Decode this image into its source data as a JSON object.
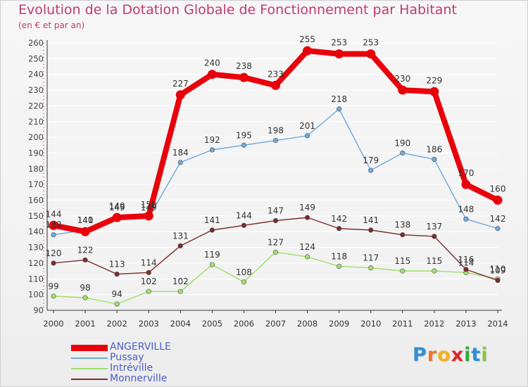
{
  "title": "Evolution de la Dotation Globale de Fonctionnement par Habitant",
  "subtitle": "(en € et par an)",
  "brand": {
    "letters": [
      "P",
      "r",
      "o",
      "x",
      "i",
      "t",
      "i"
    ],
    "colors": [
      "#2f8fd6",
      "#e8792b",
      "#f2b21d",
      "#d9272e",
      "#3aa640",
      "#2f8fd6",
      "#8dc63f"
    ]
  },
  "chart_data": {
    "type": "line",
    "title": "Evolution de la Dotation Globale de Fonctionnement par Habitant",
    "subtitle": "(en € et par an)",
    "xlabel": "",
    "ylabel": "",
    "categories": [
      "2000",
      "2001",
      "2002",
      "2003",
      "2004",
      "2005",
      "2006",
      "2007",
      "2008",
      "2009",
      "2010",
      "2011",
      "2012",
      "2013",
      "2014"
    ],
    "ylim": [
      90,
      260
    ],
    "yticks": [
      90,
      100,
      110,
      120,
      130,
      140,
      150,
      160,
      170,
      180,
      190,
      200,
      210,
      220,
      230,
      240,
      250,
      260
    ],
    "grid": "horizontal",
    "legend_position": "bottom-left",
    "series": [
      {
        "name": "ANGERVILLE",
        "color": "#e8000b",
        "values": [
          144,
          140,
          149,
          150,
          227,
          240,
          238,
          233,
          255,
          253,
          253,
          230,
          229,
          170,
          160
        ]
      },
      {
        "name": "Pussay",
        "color": "#6fa8dc",
        "values": [
          138,
          141,
          149,
          149,
          184,
          192,
          195,
          198,
          201,
          218,
          179,
          190,
          186,
          148,
          142
        ]
      },
      {
        "name": "Intréville",
        "color": "#9ee06a",
        "values": [
          99,
          98,
          94,
          102,
          102,
          119,
          108,
          127,
          124,
          118,
          117,
          115,
          115,
          114,
          110
        ]
      },
      {
        "name": "Monnerville",
        "color": "#7b2a2a",
        "values": [
          120,
          122,
          113,
          114,
          131,
          141,
          144,
          147,
          149,
          142,
          141,
          138,
          137,
          116,
          109
        ]
      }
    ]
  }
}
